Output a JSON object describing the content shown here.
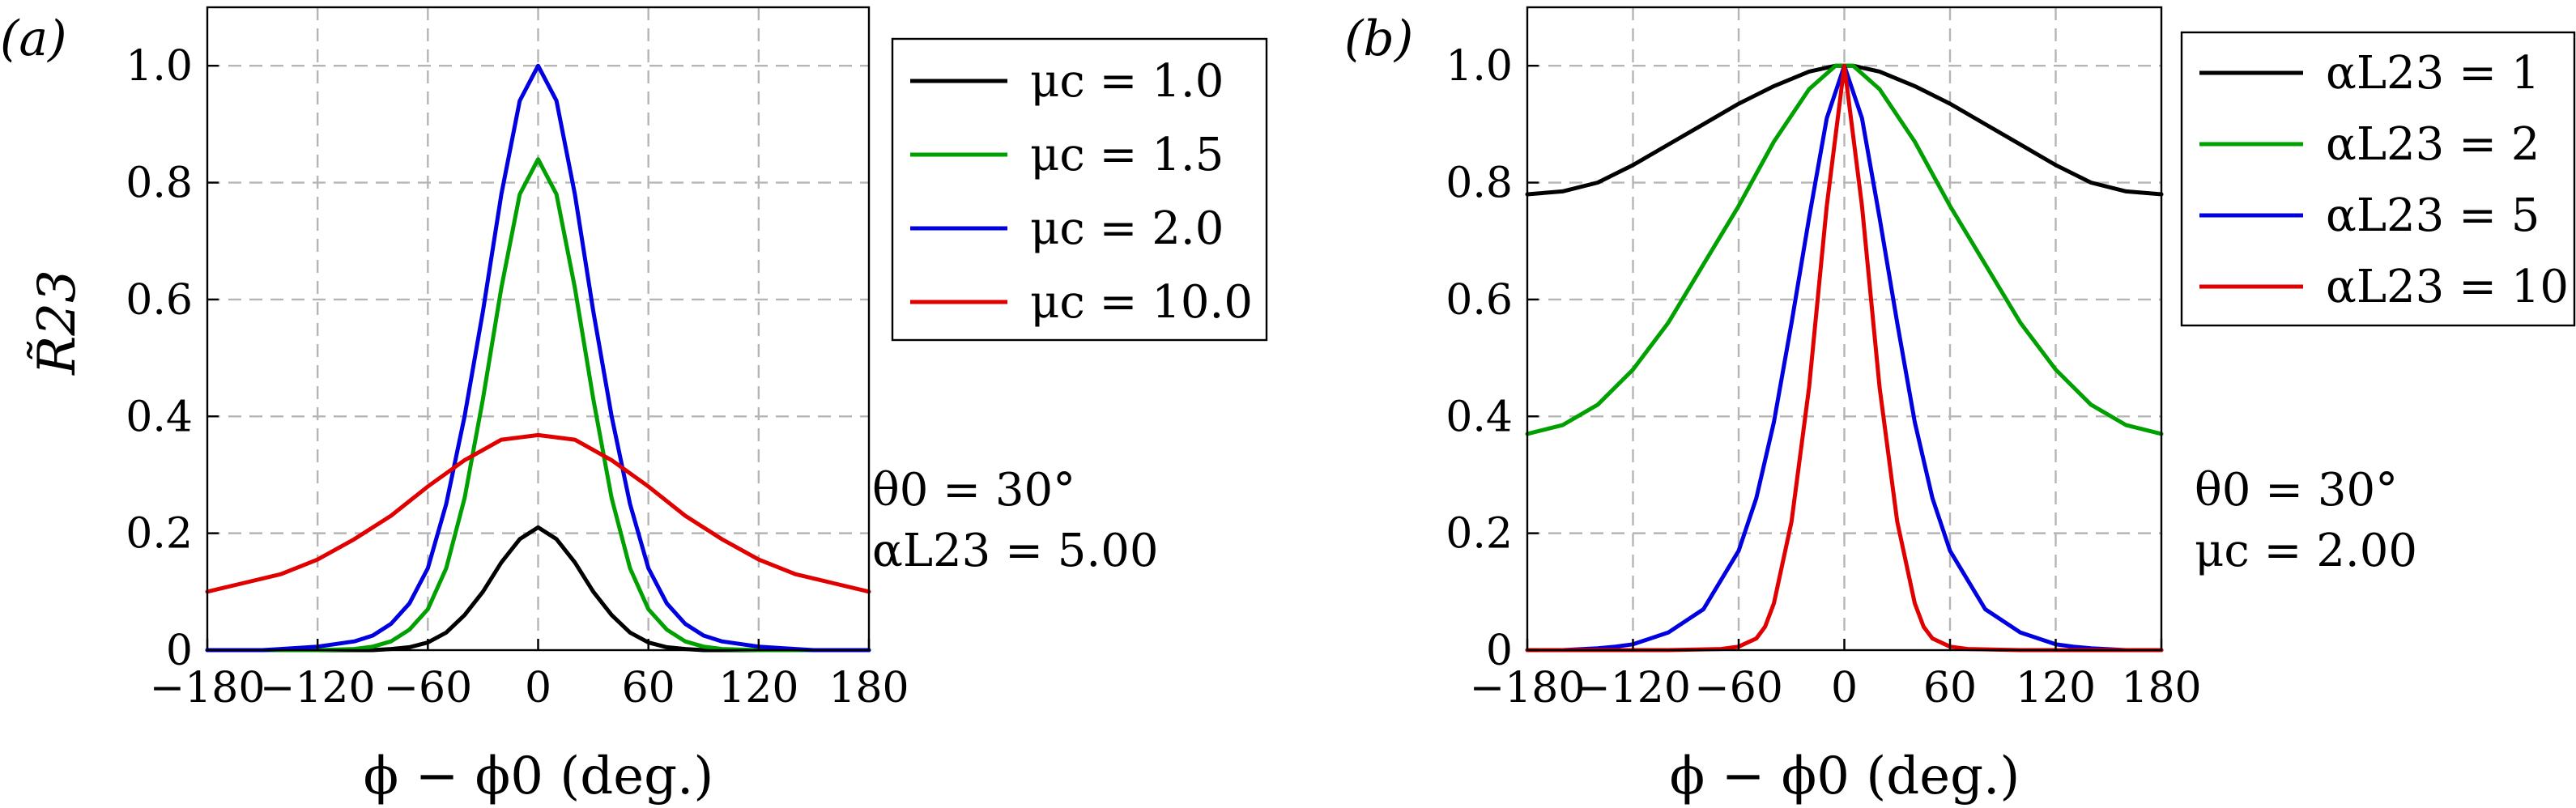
{
  "chart_data": [
    {
      "type": "line",
      "panel_label": "(a)",
      "ylabel": "R̃23",
      "xlabel": "ϕ − ϕ0 (deg.)",
      "xlim": [
        -180,
        180
      ],
      "ylim": [
        0,
        1.1
      ],
      "xticks": [
        -180,
        -120,
        -60,
        0,
        60,
        120,
        180
      ],
      "xtick_labels": [
        "−180",
        "−120",
        "−60",
        "0",
        "60",
        "120",
        "180"
      ],
      "yticks": [
        0,
        0.2,
        0.4,
        0.6,
        0.8,
        1.0
      ],
      "ytick_labels": [
        "0",
        "0.2",
        "0.4",
        "0.6",
        "0.8",
        "1.0"
      ],
      "grid": true,
      "legend_position": "top-right",
      "annotation": [
        "θ0 = 30°",
        "αL23 = 5.00"
      ],
      "series": [
        {
          "name": "μc = 1.0",
          "color": "#000000",
          "x": [
            -180,
            -150,
            -120,
            -100,
            -90,
            -80,
            -70,
            -60,
            -50,
            -40,
            -30,
            -20,
            -10,
            0,
            10,
            20,
            30,
            40,
            50,
            60,
            70,
            80,
            90,
            100,
            120,
            150,
            180
          ],
          "y": [
            0,
            0,
            0,
            0,
            0,
            0.002,
            0.005,
            0.013,
            0.03,
            0.06,
            0.1,
            0.15,
            0.19,
            0.21,
            0.19,
            0.15,
            0.1,
            0.06,
            0.03,
            0.013,
            0.005,
            0.002,
            0,
            0,
            0,
            0,
            0
          ]
        },
        {
          "name": "μc = 1.5",
          "color": "#00a000",
          "x": [
            -180,
            -150,
            -120,
            -100,
            -90,
            -80,
            -70,
            -60,
            -50,
            -40,
            -30,
            -20,
            -10,
            0,
            10,
            20,
            30,
            40,
            50,
            60,
            70,
            80,
            90,
            100,
            120,
            150,
            180
          ],
          "y": [
            0,
            0,
            0,
            0.002,
            0.006,
            0.015,
            0.035,
            0.07,
            0.14,
            0.26,
            0.43,
            0.62,
            0.78,
            0.84,
            0.78,
            0.62,
            0.43,
            0.26,
            0.14,
            0.07,
            0.035,
            0.015,
            0.006,
            0.002,
            0,
            0,
            0
          ]
        },
        {
          "name": "μc = 2.0",
          "color": "#0000e0",
          "x": [
            -180,
            -150,
            -140,
            -120,
            -100,
            -90,
            -80,
            -70,
            -60,
            -50,
            -40,
            -30,
            -20,
            -10,
            0,
            10,
            20,
            30,
            40,
            50,
            60,
            70,
            80,
            90,
            100,
            120,
            140,
            150,
            180
          ],
          "y": [
            0,
            0,
            0.002,
            0.006,
            0.015,
            0.025,
            0.045,
            0.08,
            0.14,
            0.25,
            0.4,
            0.58,
            0.78,
            0.94,
            1.0,
            0.94,
            0.78,
            0.58,
            0.4,
            0.25,
            0.14,
            0.08,
            0.045,
            0.025,
            0.015,
            0.006,
            0.002,
            0,
            0
          ]
        },
        {
          "name": "μc = 10.0",
          "color": "#e00000",
          "x": [
            -180,
            -160,
            -140,
            -120,
            -100,
            -80,
            -60,
            -40,
            -20,
            0,
            20,
            40,
            60,
            80,
            100,
            120,
            140,
            160,
            180
          ],
          "y": [
            0.1,
            0.115,
            0.13,
            0.155,
            0.19,
            0.23,
            0.28,
            0.325,
            0.36,
            0.368,
            0.36,
            0.325,
            0.28,
            0.23,
            0.19,
            0.155,
            0.13,
            0.115,
            0.1
          ]
        }
      ]
    },
    {
      "type": "line",
      "panel_label": "(b)",
      "ylabel": "",
      "xlabel": "ϕ − ϕ0 (deg.)",
      "xlim": [
        -180,
        180
      ],
      "ylim": [
        0,
        1.1
      ],
      "xticks": [
        -180,
        -120,
        -60,
        0,
        60,
        120,
        180
      ],
      "xtick_labels": [
        "−180",
        "−120",
        "−60",
        "0",
        "60",
        "120",
        "180"
      ],
      "yticks": [
        0,
        0.2,
        0.4,
        0.6,
        0.8,
        1.0
      ],
      "ytick_labels": [
        "0",
        "0.2",
        "0.4",
        "0.6",
        "0.8",
        "1.0"
      ],
      "grid": true,
      "legend_position": "top-right",
      "annotation": [
        "θ0 = 30°",
        "μc = 2.00"
      ],
      "series": [
        {
          "name": "αL23 = 1",
          "color": "#000000",
          "x": [
            -180,
            -160,
            -140,
            -120,
            -100,
            -80,
            -60,
            -40,
            -20,
            -5,
            0,
            5,
            20,
            40,
            60,
            80,
            100,
            120,
            140,
            160,
            180
          ],
          "y": [
            0.78,
            0.785,
            0.8,
            0.83,
            0.865,
            0.9,
            0.935,
            0.965,
            0.99,
            1.0,
            1.0,
            1.0,
            0.99,
            0.965,
            0.935,
            0.9,
            0.865,
            0.83,
            0.8,
            0.785,
            0.78
          ]
        },
        {
          "name": "αL23 = 2",
          "color": "#00a000",
          "x": [
            -180,
            -160,
            -140,
            -120,
            -100,
            -80,
            -60,
            -40,
            -20,
            -5,
            0,
            5,
            20,
            40,
            60,
            80,
            100,
            120,
            140,
            160,
            180
          ],
          "y": [
            0.37,
            0.385,
            0.42,
            0.48,
            0.56,
            0.66,
            0.76,
            0.87,
            0.96,
            1.0,
            1.0,
            1.0,
            0.96,
            0.87,
            0.76,
            0.66,
            0.56,
            0.48,
            0.42,
            0.385,
            0.37
          ]
        },
        {
          "name": "αL23 = 5",
          "color": "#0000e0",
          "x": [
            -180,
            -160,
            -140,
            -130,
            -120,
            -100,
            -80,
            -60,
            -50,
            -40,
            -30,
            -20,
            -10,
            0,
            10,
            20,
            30,
            40,
            50,
            60,
            80,
            100,
            120,
            130,
            140,
            160,
            180
          ],
          "y": [
            0,
            0,
            0.003,
            0.006,
            0.01,
            0.03,
            0.07,
            0.17,
            0.26,
            0.39,
            0.56,
            0.74,
            0.91,
            1.0,
            0.91,
            0.74,
            0.56,
            0.39,
            0.26,
            0.17,
            0.07,
            0.03,
            0.01,
            0.006,
            0.003,
            0,
            0
          ]
        },
        {
          "name": "αL23 = 10",
          "color": "#e00000",
          "x": [
            -180,
            -100,
            -70,
            -60,
            -50,
            -45,
            -40,
            -30,
            -20,
            -10,
            0,
            10,
            20,
            30,
            40,
            45,
            50,
            60,
            70,
            100,
            180
          ],
          "y": [
            0,
            0,
            0.002,
            0.006,
            0.02,
            0.04,
            0.08,
            0.22,
            0.45,
            0.76,
            1.0,
            0.76,
            0.45,
            0.22,
            0.08,
            0.04,
            0.02,
            0.006,
            0.002,
            0,
            0
          ]
        }
      ]
    }
  ]
}
